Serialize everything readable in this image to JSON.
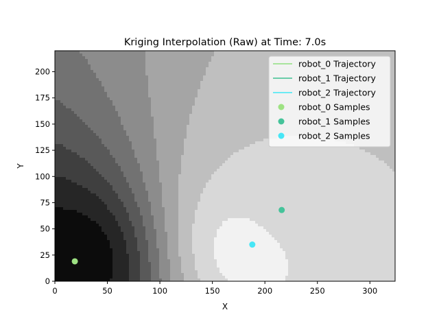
{
  "chart_data": {
    "type": "heatmap",
    "title": "Kriging Interpolation (Raw) at Time: 7.0s",
    "xlabel": "X",
    "ylabel": "Y",
    "xlim": [
      0,
      324
    ],
    "ylim": [
      0,
      220
    ],
    "x_ticks": [
      0,
      50,
      100,
      150,
      200,
      250,
      300
    ],
    "y_ticks": [
      0,
      25,
      50,
      75,
      100,
      125,
      150,
      175,
      200
    ],
    "colormap": "gray",
    "grid": false,
    "legend_position": "top-right",
    "series": [
      {
        "name": "robot_0 Trajectory",
        "kind": "line",
        "color": "#90e080",
        "x": [],
        "y": []
      },
      {
        "name": "robot_1 Trajectory",
        "kind": "line",
        "color": "#3dbf8f",
        "x": [],
        "y": []
      },
      {
        "name": "robot_2 Trajectory",
        "kind": "line",
        "color": "#3ee8f4",
        "x": [],
        "y": []
      },
      {
        "name": "robot_0 Samples",
        "kind": "scatter",
        "color": "#9ee283",
        "x": [
          19
        ],
        "y": [
          19
        ]
      },
      {
        "name": "robot_1 Samples",
        "kind": "scatter",
        "color": "#45c39a",
        "x": [
          216
        ],
        "y": [
          68
        ]
      },
      {
        "name": "robot_2 Samples",
        "kind": "scatter",
        "color": "#47e6f6",
        "x": [
          188
        ],
        "y": [
          35
        ]
      }
    ]
  }
}
